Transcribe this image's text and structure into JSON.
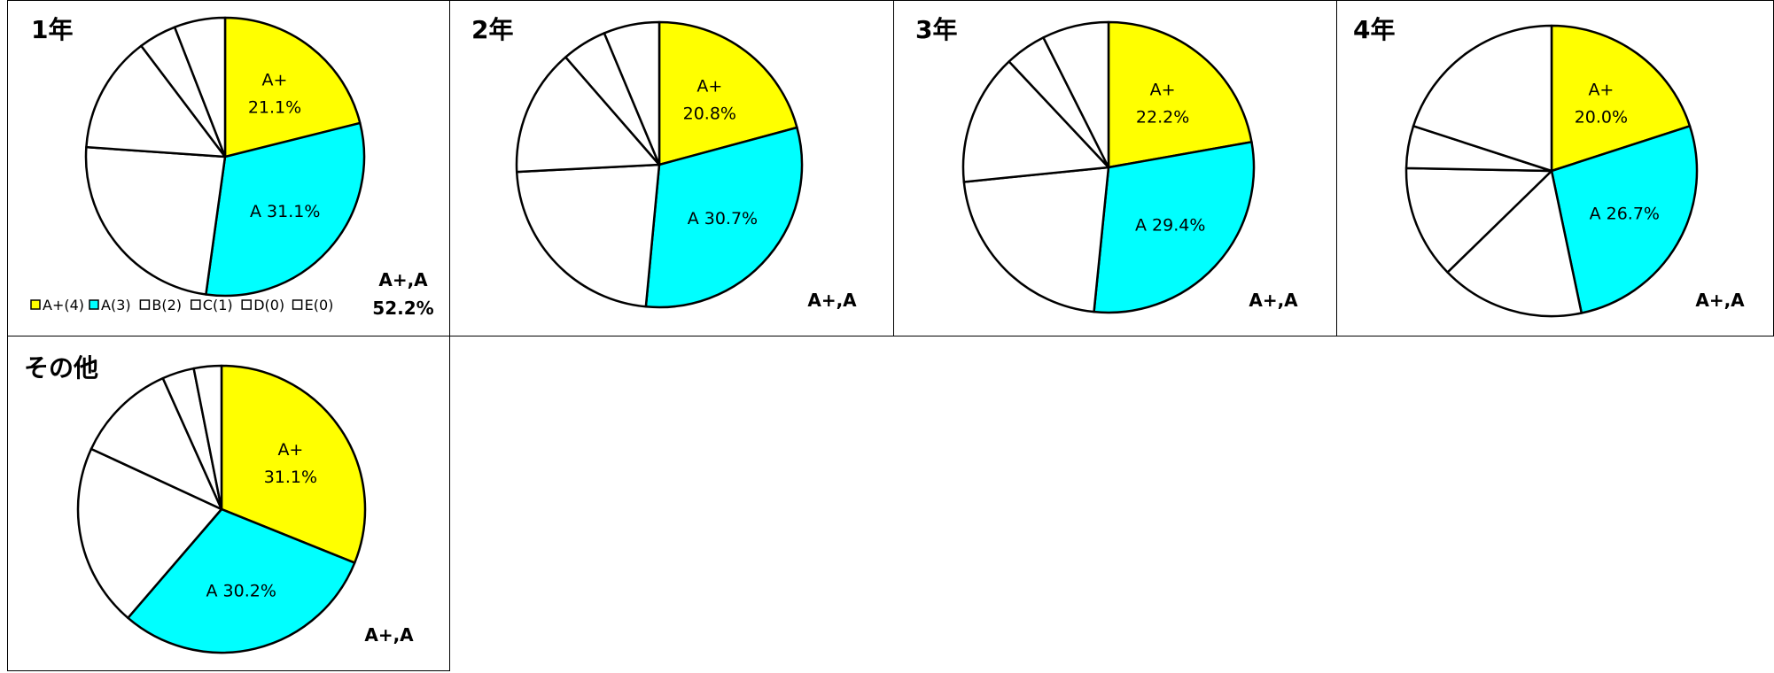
{
  "colors": {
    "A+(4)": "#ffff00",
    "A(3)": "#00ffff",
    "B(2)": "#ffffff",
    "C(1)": "#ffffff",
    "D(0)": "#ffffff",
    "E(0)": "#ffffff",
    "stroke": "#000000"
  },
  "chart_data": [
    {
      "type": "pie",
      "title": "1年",
      "categories": [
        "A+(4)",
        "A(3)",
        "B(2)",
        "C(1)",
        "D(0)",
        "E(0)"
      ],
      "values": [
        21.1,
        31.1,
        23.9,
        13.6,
        4.4,
        5.9
      ],
      "slice_labels": [
        "A+\n21.1%",
        "A 31.1%",
        "",
        "",
        "",
        ""
      ],
      "aa_label": "A+,A",
      "aa_value": "52.2%",
      "legend": [
        "A+(4)",
        "A(3)",
        "B(2)",
        "C(1)",
        "D(0)",
        "E(0)"
      ],
      "legend_position": "bottom-left"
    },
    {
      "type": "pie",
      "title": "2年",
      "categories": [
        "A+(4)",
        "A(3)",
        "B(2)",
        "C(1)",
        "D(0)",
        "E(0)"
      ],
      "values": [
        20.8,
        30.7,
        22.7,
        14.4,
        5.1,
        6.3
      ],
      "slice_labels": [
        "A+\n20.8%",
        "A 30.7%",
        "",
        "",
        "",
        ""
      ],
      "aa_label": "A+,A"
    },
    {
      "type": "pie",
      "title": "3年",
      "categories": [
        "A+(4)",
        "A(3)",
        "B(2)",
        "C(1)",
        "D(0)",
        "E(0)"
      ],
      "values": [
        22.2,
        29.4,
        21.8,
        14.6,
        4.6,
        7.4
      ],
      "slice_labels": [
        "A+\n22.2%",
        "A 29.4%",
        "",
        "",
        "",
        ""
      ],
      "aa_label": "A+,A"
    },
    {
      "type": "pie",
      "title": "4年",
      "categories": [
        "A+(4)",
        "A(3)",
        "B(2)",
        "C(1)",
        "D(0)",
        "E(0)"
      ],
      "values": [
        20.0,
        26.7,
        16.0,
        12.6,
        4.7,
        20.0
      ],
      "slice_labels": [
        "A+\n20.0%",
        "A 26.7%",
        "",
        "",
        "",
        ""
      ],
      "aa_label": "A+,A"
    },
    {
      "type": "pie",
      "title": "その他",
      "categories": [
        "A+(4)",
        "A(3)",
        "B(2)",
        "C(1)",
        "D(0)",
        "E(0)"
      ],
      "values": [
        31.1,
        30.2,
        20.6,
        11.4,
        3.6,
        3.1
      ],
      "slice_labels": [
        "A+\n31.1%",
        "A 30.2%",
        "",
        "",
        "",
        ""
      ],
      "aa_label": "A+,A"
    }
  ]
}
